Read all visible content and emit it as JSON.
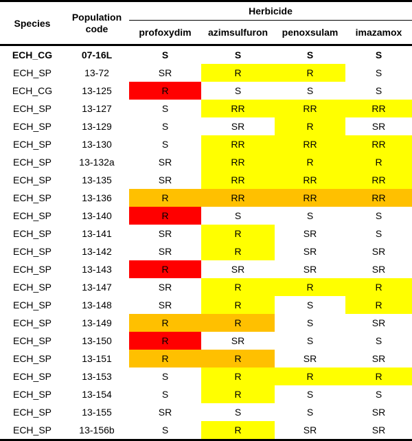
{
  "header": {
    "species": "Species",
    "population_code_line1": "Population",
    "population_code_line2": "code",
    "herbicide": "Herbicide",
    "herbicides": [
      "profoxydim",
      "azimsulfuron",
      "penoxsulam",
      "imazamox"
    ]
  },
  "colors": {
    "none": "#ffffff",
    "yellow": "#ffff00",
    "orange": "#ffc000",
    "red": "#ff0000"
  },
  "rows": [
    {
      "species": "ECH_CG",
      "code": "07-16L",
      "bold": true,
      "cells": [
        {
          "v": "S",
          "c": "none"
        },
        {
          "v": "S",
          "c": "none"
        },
        {
          "v": "S",
          "c": "none"
        },
        {
          "v": "S",
          "c": "none"
        }
      ]
    },
    {
      "species": "ECH_SP",
      "code": "13-72",
      "cells": [
        {
          "v": "SR",
          "c": "none"
        },
        {
          "v": "R",
          "c": "yellow"
        },
        {
          "v": "R",
          "c": "yellow"
        },
        {
          "v": "S",
          "c": "none"
        }
      ]
    },
    {
      "species": "ECH_CG",
      "code": "13-125",
      "cells": [
        {
          "v": "R",
          "c": "red"
        },
        {
          "v": "S",
          "c": "none"
        },
        {
          "v": "S",
          "c": "none"
        },
        {
          "v": "S",
          "c": "none"
        }
      ]
    },
    {
      "species": "ECH_SP",
      "code": "13-127",
      "cells": [
        {
          "v": "S",
          "c": "none"
        },
        {
          "v": "RR",
          "c": "yellow"
        },
        {
          "v": "RR",
          "c": "yellow"
        },
        {
          "v": "RR",
          "c": "yellow"
        }
      ]
    },
    {
      "species": "ECH_SP",
      "code": "13-129",
      "cells": [
        {
          "v": "S",
          "c": "none"
        },
        {
          "v": "SR",
          "c": "none"
        },
        {
          "v": "R",
          "c": "yellow"
        },
        {
          "v": "SR",
          "c": "none"
        }
      ]
    },
    {
      "species": "ECH_SP",
      "code": "13-130",
      "cells": [
        {
          "v": "S",
          "c": "none"
        },
        {
          "v": "RR",
          "c": "yellow"
        },
        {
          "v": "RR",
          "c": "yellow"
        },
        {
          "v": "RR",
          "c": "yellow"
        }
      ]
    },
    {
      "species": "ECH_SP",
      "code": "13-132a",
      "cells": [
        {
          "v": "SR",
          "c": "none"
        },
        {
          "v": "RR",
          "c": "yellow"
        },
        {
          "v": "R",
          "c": "yellow"
        },
        {
          "v": "R",
          "c": "yellow"
        }
      ]
    },
    {
      "species": "ECH_SP",
      "code": "13-135",
      "cells": [
        {
          "v": "SR",
          "c": "none"
        },
        {
          "v": "RR",
          "c": "yellow"
        },
        {
          "v": "RR",
          "c": "yellow"
        },
        {
          "v": "RR",
          "c": "yellow"
        }
      ]
    },
    {
      "species": "ECH_SP",
      "code": "13-136",
      "cells": [
        {
          "v": "R",
          "c": "orange"
        },
        {
          "v": "RR",
          "c": "orange"
        },
        {
          "v": "RR",
          "c": "orange"
        },
        {
          "v": "RR",
          "c": "orange"
        }
      ]
    },
    {
      "species": "ECH_SP",
      "code": "13-140",
      "cells": [
        {
          "v": "R",
          "c": "red"
        },
        {
          "v": "S",
          "c": "none"
        },
        {
          "v": "S",
          "c": "none"
        },
        {
          "v": "S",
          "c": "none"
        }
      ]
    },
    {
      "species": "ECH_SP",
      "code": "13-141",
      "cells": [
        {
          "v": "SR",
          "c": "none"
        },
        {
          "v": "R",
          "c": "yellow"
        },
        {
          "v": "SR",
          "c": "none"
        },
        {
          "v": "S",
          "c": "none"
        }
      ]
    },
    {
      "species": "ECH_SP",
      "code": "13-142",
      "cells": [
        {
          "v": "SR",
          "c": "none"
        },
        {
          "v": "R",
          "c": "yellow"
        },
        {
          "v": "SR",
          "c": "none"
        },
        {
          "v": "SR",
          "c": "none"
        }
      ]
    },
    {
      "species": "ECH_SP",
      "code": "13-143",
      "cells": [
        {
          "v": "R",
          "c": "red"
        },
        {
          "v": "SR",
          "c": "none"
        },
        {
          "v": "SR",
          "c": "none"
        },
        {
          "v": "SR",
          "c": "none"
        }
      ]
    },
    {
      "species": "ECH_SP",
      "code": "13-147",
      "cells": [
        {
          "v": "SR",
          "c": "none"
        },
        {
          "v": "R",
          "c": "yellow"
        },
        {
          "v": "R",
          "c": "yellow"
        },
        {
          "v": "R",
          "c": "yellow"
        }
      ]
    },
    {
      "species": "ECH_SP",
      "code": "13-148",
      "cells": [
        {
          "v": "SR",
          "c": "none"
        },
        {
          "v": "R",
          "c": "yellow"
        },
        {
          "v": "S",
          "c": "none"
        },
        {
          "v": "R",
          "c": "yellow"
        }
      ]
    },
    {
      "species": "ECH_SP",
      "code": "13-149",
      "cells": [
        {
          "v": "R",
          "c": "orange"
        },
        {
          "v": "R",
          "c": "orange"
        },
        {
          "v": "S",
          "c": "none"
        },
        {
          "v": "SR",
          "c": "none"
        }
      ]
    },
    {
      "species": "ECH_SP",
      "code": "13-150",
      "cells": [
        {
          "v": "R",
          "c": "red"
        },
        {
          "v": "SR",
          "c": "none"
        },
        {
          "v": "S",
          "c": "none"
        },
        {
          "v": "S",
          "c": "none"
        }
      ]
    },
    {
      "species": "ECH_SP",
      "code": "13-151",
      "cells": [
        {
          "v": "R",
          "c": "orange"
        },
        {
          "v": "R",
          "c": "orange"
        },
        {
          "v": "SR",
          "c": "none"
        },
        {
          "v": "SR",
          "c": "none"
        }
      ]
    },
    {
      "species": "ECH_SP",
      "code": "13-153",
      "cells": [
        {
          "v": "S",
          "c": "none"
        },
        {
          "v": "R",
          "c": "yellow"
        },
        {
          "v": "R",
          "c": "yellow"
        },
        {
          "v": "R",
          "c": "yellow"
        }
      ]
    },
    {
      "species": "ECH_SP",
      "code": "13-154",
      "cells": [
        {
          "v": "S",
          "c": "none"
        },
        {
          "v": "R",
          "c": "yellow"
        },
        {
          "v": "S",
          "c": "none"
        },
        {
          "v": "S",
          "c": "none"
        }
      ]
    },
    {
      "species": "ECH_SP",
      "code": "13-155",
      "cells": [
        {
          "v": "SR",
          "c": "none"
        },
        {
          "v": "S",
          "c": "none"
        },
        {
          "v": "S",
          "c": "none"
        },
        {
          "v": "SR",
          "c": "none"
        }
      ]
    },
    {
      "species": "ECH_SP",
      "code": "13-156b",
      "cells": [
        {
          "v": "S",
          "c": "none"
        },
        {
          "v": "R",
          "c": "yellow"
        },
        {
          "v": "SR",
          "c": "none"
        },
        {
          "v": "SR",
          "c": "none"
        }
      ]
    }
  ]
}
